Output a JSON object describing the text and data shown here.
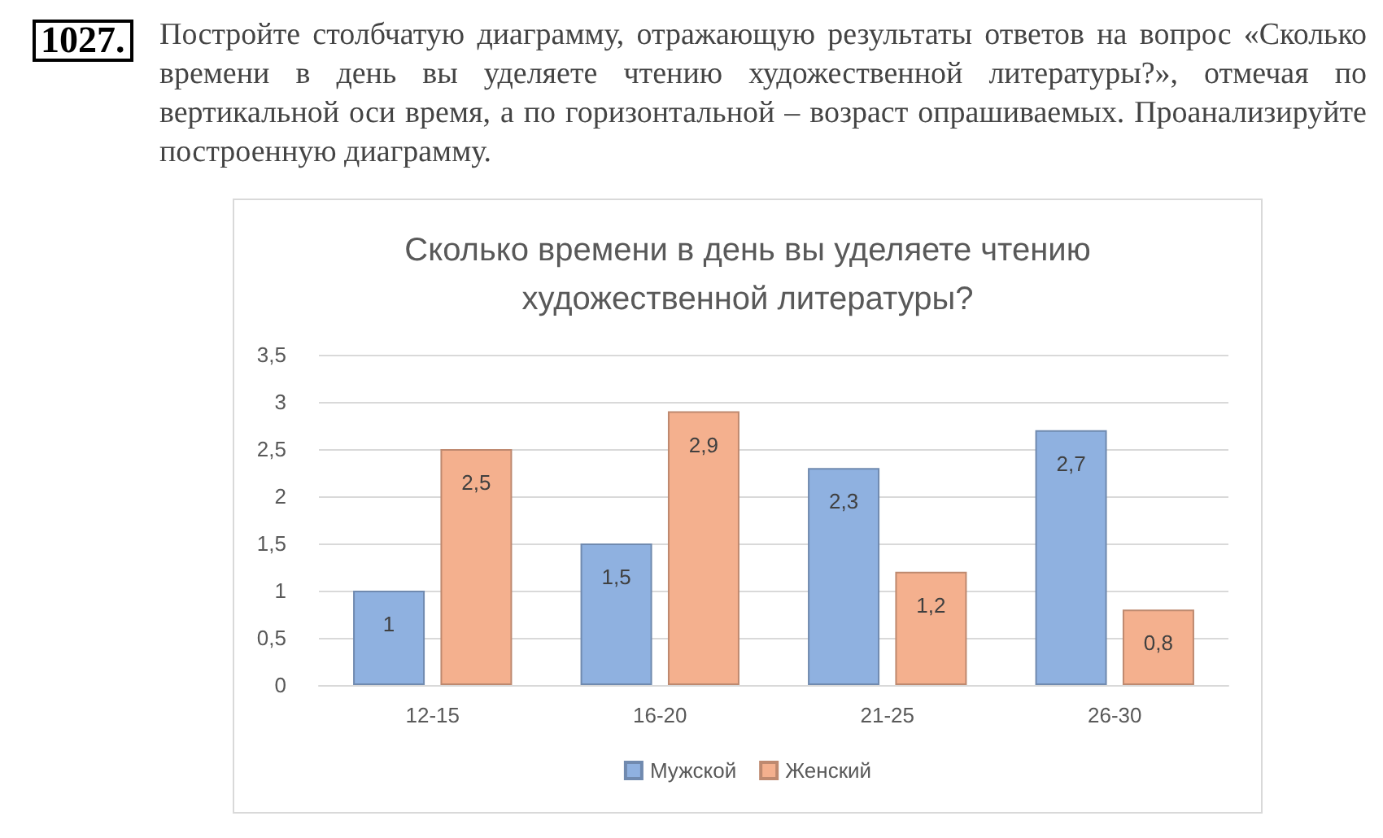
{
  "chart_data": {
    "type": "bar",
    "title": "Сколько времени в день вы уделяете чтению художественной литературы?",
    "annotations": [
      "1027.",
      "Постройте столбчатую диаграмму, отражающую результаты ответов на вопрос «Сколько времени в день вы уделяете чтению художественной литературы?», отмечая по вертикальной оси время, а по горизонтальной – возраст опрашиваемых. Проанализируйте построенную диаграмму."
    ],
    "categories": [
      "12-15",
      "16-20",
      "21-25",
      "26-30"
    ],
    "series": [
      {
        "name": "Мужской",
        "color": "#8fb1e0",
        "values": [
          1,
          1.5,
          2.3,
          2.7
        ],
        "value_labels": [
          "1",
          "1,5",
          "2,3",
          "2,7"
        ]
      },
      {
        "name": "Женский",
        "color": "#f4b08e",
        "values": [
          2.5,
          2.9,
          1.2,
          0.8
        ],
        "value_labels": [
          "2,5",
          "2,9",
          "1,2",
          "0,8"
        ]
      }
    ],
    "ylim": [
      0,
      3.5
    ],
    "yticks": [
      0,
      {
        "value": 0.5,
        "label": "0,5"
      },
      1,
      {
        "value": 1.5,
        "label": "1,5"
      },
      2,
      {
        "value": 2.5,
        "label": "2,5"
      },
      3,
      {
        "value": 3.5,
        "label": "3,5"
      }
    ],
    "grid": "y",
    "legend": "bottom"
  }
}
